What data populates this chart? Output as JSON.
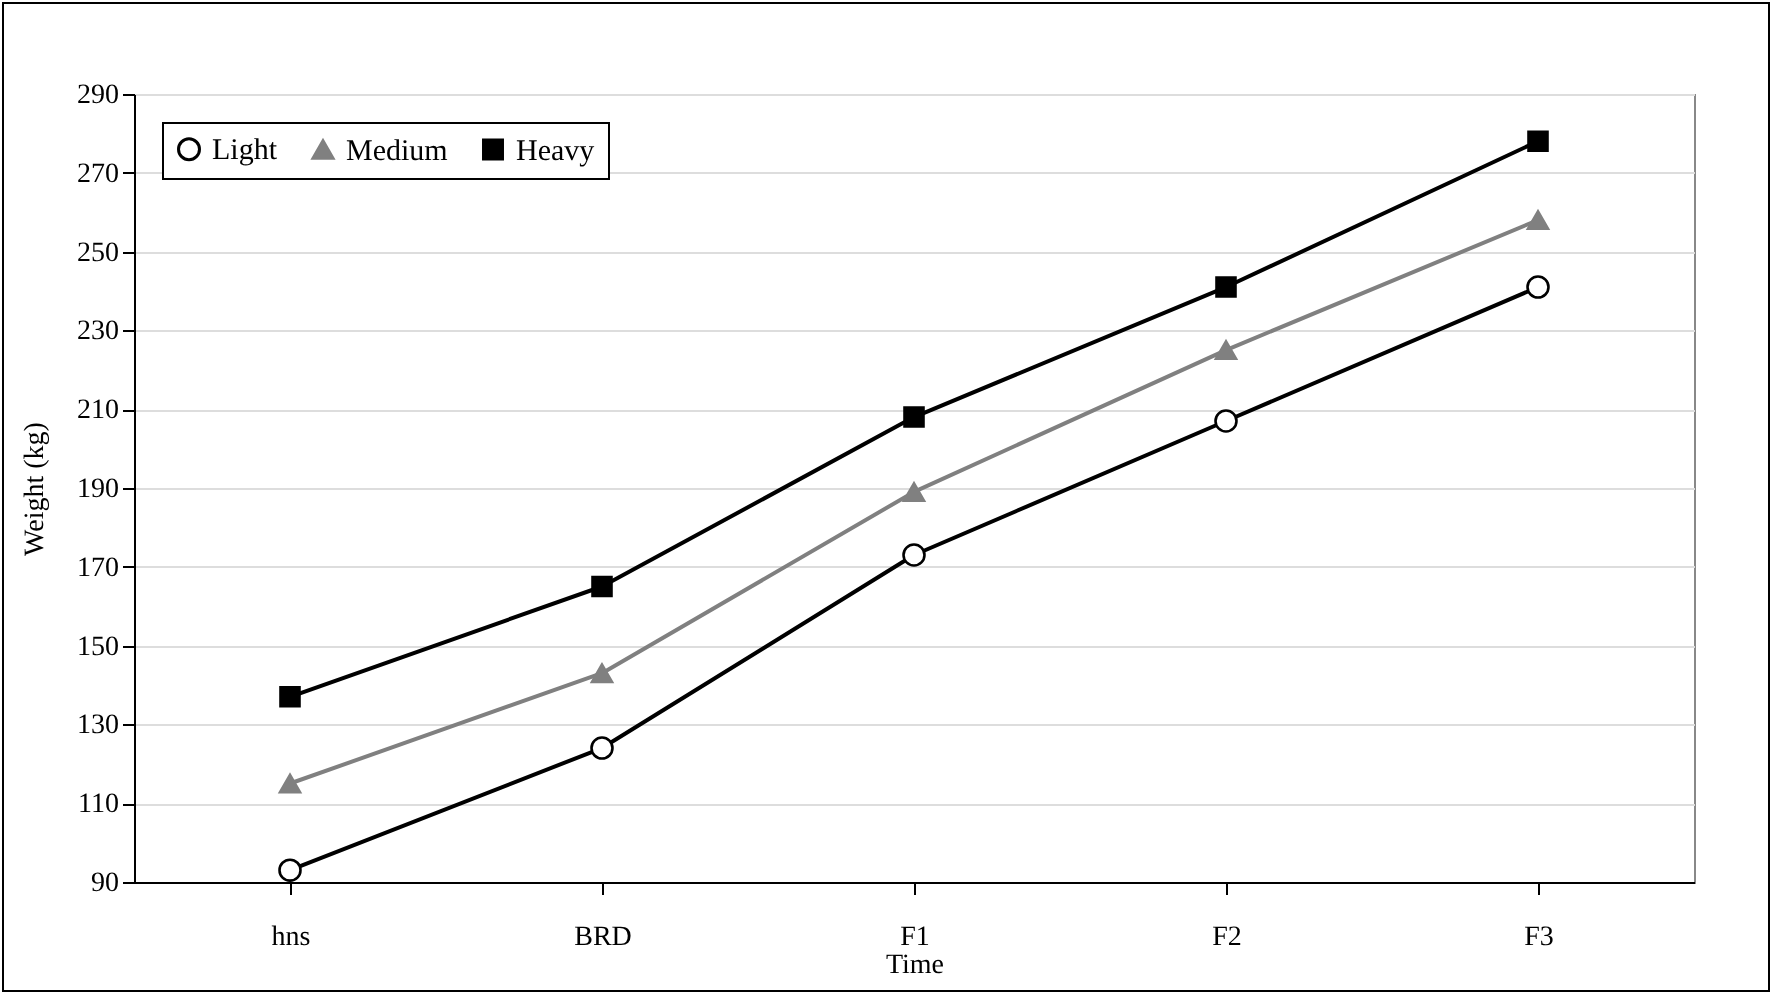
{
  "chart_data": {
    "type": "line",
    "xlabel": "Time",
    "ylabel": "Weight (kg)",
    "categories": [
      "hns",
      "BRD",
      "F1",
      "F2",
      "F3"
    ],
    "series": [
      {
        "name": "Light",
        "color": "#000000",
        "marker": "circle",
        "values": [
          93,
          124,
          173,
          207,
          241
        ]
      },
      {
        "name": "Medium",
        "color": "#808080",
        "marker": "triangle",
        "values": [
          115,
          143,
          189,
          225,
          258
        ]
      },
      {
        "name": "Heavy",
        "color": "#000000",
        "marker": "square",
        "values": [
          137,
          165,
          208,
          241,
          278
        ]
      }
    ],
    "ylim": [
      90,
      290
    ],
    "yticks": [
      90,
      110,
      130,
      150,
      170,
      190,
      210,
      230,
      250,
      270,
      290
    ],
    "grid": "y",
    "legend": "top left",
    "line_style": "solid"
  }
}
